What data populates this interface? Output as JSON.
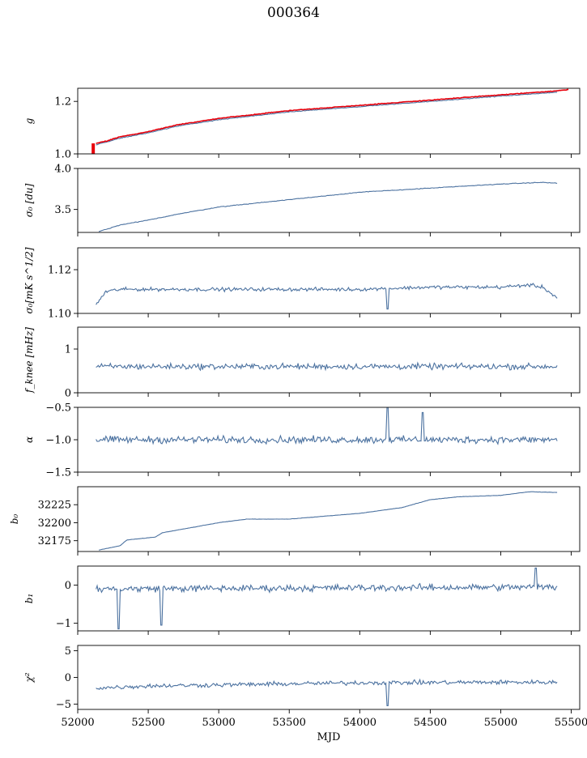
{
  "figure": {
    "title": "000364",
    "xlabel": "MJD"
  },
  "chart_data": {
    "type": "line",
    "x_range": [
      52000,
      55560
    ],
    "x_ticks": [
      52000,
      52500,
      53000,
      53500,
      54000,
      54500,
      55000,
      55500
    ],
    "x_ticks_visible": true,
    "x_tick_labels_on_last_panel_only": true,
    "series_color": "#4c72a0",
    "panels": [
      {
        "name": "gain",
        "ylabel": "g",
        "ylim": [
          1.0,
          1.25
        ],
        "yticks": [
          1.0,
          1.2
        ],
        "ytick_labels": [
          "1.0",
          "1.2"
        ],
        "series": [
          {
            "color": "#4c72a0",
            "keypoints": [
              [
                52130,
                1.035
              ],
              [
                52200,
                1.045
              ],
              [
                52300,
                1.06
              ],
              [
                52500,
                1.08
              ],
              [
                52700,
                1.105
              ],
              [
                53000,
                1.13
              ],
              [
                53500,
                1.16
              ],
              [
                54000,
                1.18
              ],
              [
                54500,
                1.2
              ],
              [
                55000,
                1.22
              ],
              [
                55400,
                1.235
              ]
            ],
            "noise": 0.002
          },
          {
            "color": "#e8000b",
            "keypoints": [
              [
                52130,
                1.04
              ],
              [
                52200,
                1.048
              ],
              [
                52300,
                1.065
              ],
              [
                52500,
                1.085
              ],
              [
                52700,
                1.11
              ],
              [
                53000,
                1.135
              ],
              [
                53500,
                1.165
              ],
              [
                54000,
                1.185
              ],
              [
                54500,
                1.205
              ],
              [
                55000,
                1.225
              ],
              [
                55400,
                1.24
              ],
              [
                55480,
                1.245
              ]
            ],
            "noise": 0.002,
            "spike": {
              "x": 52110,
              "from": 1.0,
              "to": 1.04
            }
          }
        ]
      },
      {
        "name": "sigma0-du",
        "ylabel": "σ₀ [du]",
        "ylim": [
          3.22,
          4.0
        ],
        "yticks": [
          3.5,
          4.0
        ],
        "ytick_labels": [
          "3.5",
          "4.0"
        ],
        "series": [
          {
            "color": "#4c72a0",
            "keypoints": [
              [
                52150,
                3.23
              ],
              [
                52300,
                3.31
              ],
              [
                52500,
                3.37
              ],
              [
                52700,
                3.44
              ],
              [
                53000,
                3.53
              ],
              [
                53500,
                3.62
              ],
              [
                54000,
                3.71
              ],
              [
                54500,
                3.76
              ],
              [
                55000,
                3.81
              ],
              [
                55300,
                3.83
              ],
              [
                55400,
                3.82
              ]
            ],
            "noise": 0.006
          }
        ]
      },
      {
        "name": "sigma0-mk",
        "ylabel": "σ₀[mK s^1/2]",
        "ylim": [
          1.1,
          1.13
        ],
        "yticks": [
          1.1,
          1.12
        ],
        "ytick_labels": [
          "1.10",
          "1.12"
        ],
        "series": [
          {
            "color": "#4c72a0",
            "keypoints": [
              [
                52130,
                1.104
              ],
              [
                52200,
                1.11
              ],
              [
                52300,
                1.111
              ],
              [
                52500,
                1.111
              ],
              [
                53000,
                1.111
              ],
              [
                53500,
                1.111
              ],
              [
                54000,
                1.111
              ],
              [
                54500,
                1.112
              ],
              [
                55000,
                1.112
              ],
              [
                55200,
                1.113
              ],
              [
                55300,
                1.112
              ],
              [
                55400,
                1.107
              ]
            ],
            "noise": 0.0012,
            "dips": [
              {
                "x": 54200,
                "to": 1.102
              }
            ]
          }
        ]
      },
      {
        "name": "fknee",
        "ylabel": "f_knee [mHz]",
        "ylim": [
          0.0,
          1.5
        ],
        "yticks": [
          0,
          1
        ],
        "ytick_labels": [
          "0",
          "1"
        ],
        "series": [
          {
            "color": "#4c72a0",
            "keypoints": [
              [
                52130,
                0.6
              ],
              [
                55400,
                0.6
              ]
            ],
            "noise": 0.1
          }
        ]
      },
      {
        "name": "alpha",
        "ylabel": "α",
        "ylim": [
          -1.5,
          -0.5
        ],
        "yticks": [
          -1.5,
          -1.0,
          -0.5
        ],
        "ytick_labels": [
          "−1.5",
          "−1.0",
          "−0.5"
        ],
        "series": [
          {
            "color": "#4c72a0",
            "keypoints": [
              [
                52130,
                -1.0
              ],
              [
                55400,
                -1.0
              ]
            ],
            "noise": 0.08,
            "dips": [
              {
                "x": 54200,
                "to": -0.5
              },
              {
                "x": 54450,
                "to": -0.58
              }
            ]
          }
        ]
      },
      {
        "name": "b0",
        "ylabel": "b₀",
        "ylim": [
          32160,
          32250
        ],
        "yticks": [
          32175,
          32200,
          32225
        ],
        "ytick_labels": [
          "32175",
          "32200",
          "32225"
        ],
        "series": [
          {
            "color": "#4c72a0",
            "keypoints": [
              [
                52150,
                32162
              ],
              [
                52300,
                32168
              ],
              [
                52350,
                32176
              ],
              [
                52550,
                32180
              ],
              [
                52600,
                32186
              ],
              [
                52800,
                32193
              ],
              [
                53000,
                32200
              ],
              [
                53200,
                32205
              ],
              [
                53500,
                32205
              ],
              [
                54000,
                32213
              ],
              [
                54300,
                32221
              ],
              [
                54500,
                32232
              ],
              [
                54700,
                32236
              ],
              [
                55000,
                32238
              ],
              [
                55200,
                32243
              ],
              [
                55400,
                32242
              ]
            ],
            "noise": 0.3
          }
        ]
      },
      {
        "name": "b1",
        "ylabel": "b₁",
        "ylim": [
          -1.2,
          0.5
        ],
        "yticks": [
          -1,
          0
        ],
        "ytick_labels": [
          "−1",
          "0"
        ],
        "series": [
          {
            "color": "#4c72a0",
            "keypoints": [
              [
                52130,
                -0.1
              ],
              [
                55400,
                -0.05
              ]
            ],
            "noise": 0.13,
            "dips": [
              {
                "x": 52290,
                "to": -1.15
              },
              {
                "x": 52590,
                "to": -1.05
              },
              {
                "x": 55250,
                "to": 0.45
              }
            ]
          }
        ]
      },
      {
        "name": "chi2",
        "ylabel": "χ²",
        "ylim": [
          -6,
          6
        ],
        "yticks": [
          -5,
          0,
          5
        ],
        "ytick_labels": [
          "−5",
          "0",
          "5"
        ],
        "series": [
          {
            "color": "#4c72a0",
            "keypoints": [
              [
                52130,
                -2.0
              ],
              [
                52500,
                -1.6
              ],
              [
                53000,
                -1.4
              ],
              [
                54000,
                -1.0
              ],
              [
                55000,
                -0.9
              ],
              [
                55400,
                -0.9
              ]
            ],
            "noise": 0.6,
            "dips": [
              {
                "x": 54200,
                "to": -5.3
              }
            ]
          }
        ]
      }
    ]
  }
}
